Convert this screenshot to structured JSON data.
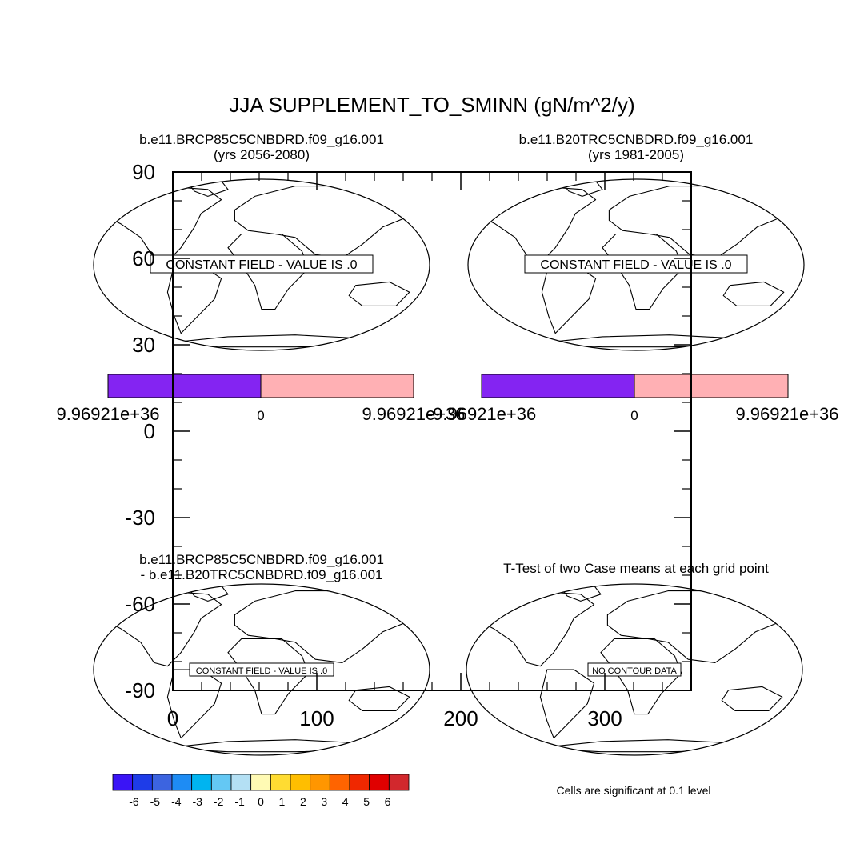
{
  "title": "JJA SUPPLEMENT_TO_SMINN (gN/m^2/y)",
  "panels": {
    "top_left": {
      "case": "b.e11.BRCP85C5CNBDRD.f09_g16.001",
      "years": "(yrs 2056-2080)",
      "message": "CONSTANT FIELD - VALUE IS .0",
      "colorbar": {
        "colors": [
          "#8424f2",
          "#ffb0b4"
        ],
        "labels": [
          "9.96921e+36",
          "0",
          "9.96921e+36"
        ]
      }
    },
    "top_right": {
      "case": "b.e11.B20TRC5CNBDRD.f09_g16.001",
      "years": "(yrs 1981-2005)",
      "message": "CONSTANT FIELD - VALUE IS .0",
      "colorbar": {
        "colors": [
          "#8424f2",
          "#ffb0b4"
        ],
        "labels": [
          "-9.96921e+36",
          "0",
          "9.96921e+36"
        ]
      }
    },
    "bottom_left": {
      "case_line1": "b.e11.BRCP85C5CNBDRD.f09_g16.001",
      "case_line2": "- b.e11.B20TRC5CNBDRD.f09_g16.001",
      "message": "CONSTANT FIELD - VALUE IS .0"
    },
    "bottom_right": {
      "title": "T-Test of two Case means at each grid point",
      "message": "NO CONTOUR DATA",
      "note": "Cells are significant at 0.1 level"
    }
  },
  "chart_data": {
    "type": "map-panel",
    "x_ticks": [
      "0",
      "100",
      "200",
      "300"
    ],
    "x_range": [
      0,
      360
    ],
    "y_ticks": [
      "90",
      "60",
      "30",
      "0",
      "-30",
      "-60",
      "-90"
    ],
    "y_range": [
      -90,
      90
    ]
  },
  "diff_colorbar": {
    "colors": [
      "#3a14f6",
      "#1e3ce8",
      "#3c64e0",
      "#1e8cf4",
      "#00b4f0",
      "#64c8f4",
      "#b4e0f4",
      "#fffab4",
      "#ffdc32",
      "#ffbe00",
      "#ff9600",
      "#ff6400",
      "#f02800",
      "#e00000",
      "#d2282d"
    ],
    "labels": [
      "-6",
      "-5",
      "-4",
      "-3",
      "-2",
      "-1",
      "0",
      "1",
      "2",
      "3",
      "4",
      "5",
      "6"
    ]
  }
}
